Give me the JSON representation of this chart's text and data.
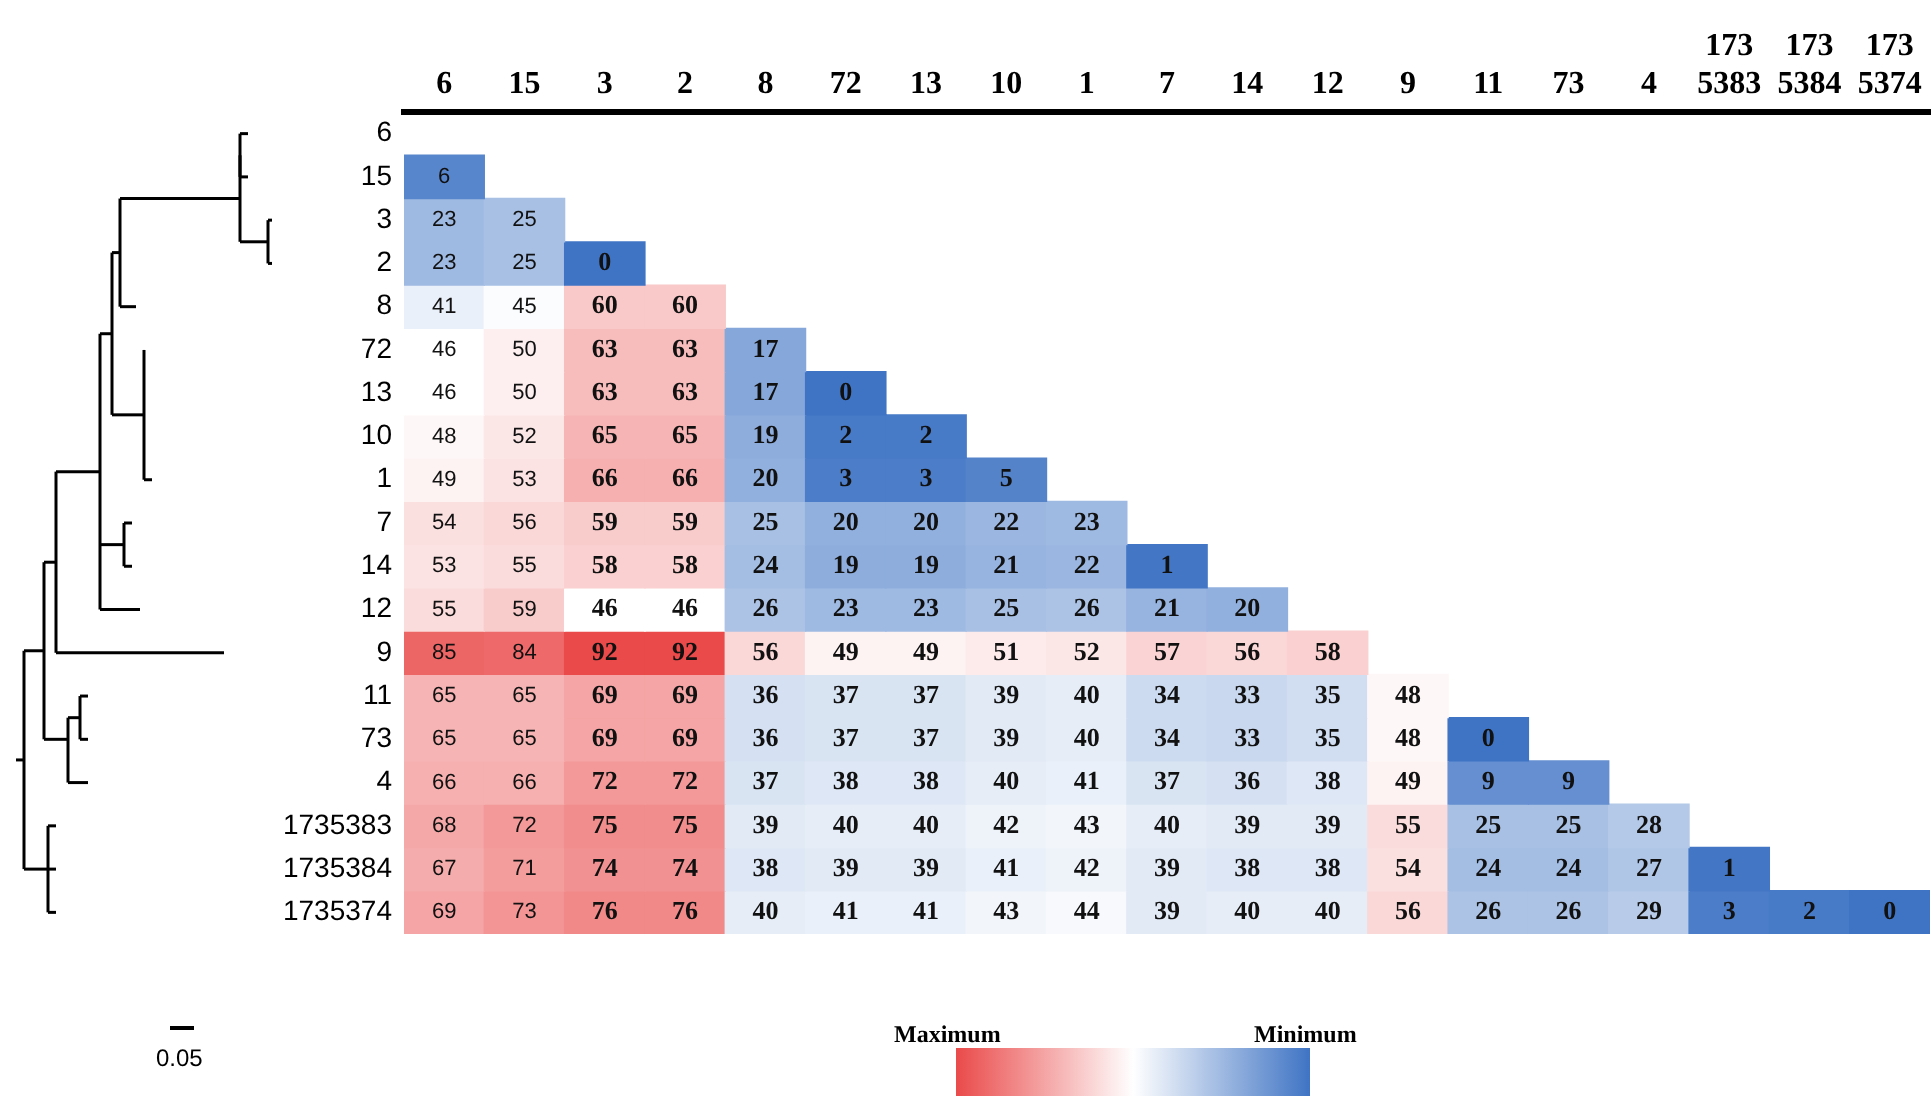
{
  "chart_data": {
    "type": "heatmap",
    "categories": [
      "6",
      "15",
      "3",
      "2",
      "8",
      "72",
      "13",
      "10",
      "1",
      "7",
      "14",
      "12",
      "9",
      "11",
      "73",
      "4",
      "173 5383",
      "173 5384",
      "173 5374"
    ],
    "y_categories": [
      "6",
      "15",
      "3",
      "2",
      "8",
      "72",
      "13",
      "10",
      "1",
      "7",
      "14",
      "12",
      "9",
      "11",
      "73",
      "4",
      "1735383",
      "1735384",
      "1735374"
    ],
    "cells": [
      [
        null,
        null,
        null,
        null,
        null,
        null,
        null,
        null,
        null,
        null,
        null,
        null,
        null,
        null,
        null,
        null,
        null,
        null,
        null
      ],
      [
        6,
        null,
        null,
        null,
        null,
        null,
        null,
        null,
        null,
        null,
        null,
        null,
        null,
        null,
        null,
        null,
        null,
        null,
        null
      ],
      [
        23,
        25,
        null,
        null,
        null,
        null,
        null,
        null,
        null,
        null,
        null,
        null,
        null,
        null,
        null,
        null,
        null,
        null,
        null
      ],
      [
        23,
        25,
        0,
        null,
        null,
        null,
        null,
        null,
        null,
        null,
        null,
        null,
        null,
        null,
        null,
        null,
        null,
        null,
        null
      ],
      [
        41,
        45,
        60,
        60,
        null,
        null,
        null,
        null,
        null,
        null,
        null,
        null,
        null,
        null,
        null,
        null,
        null,
        null,
        null
      ],
      [
        46,
        50,
        63,
        63,
        17,
        null,
        null,
        null,
        null,
        null,
        null,
        null,
        null,
        null,
        null,
        null,
        null,
        null,
        null
      ],
      [
        46,
        50,
        63,
        63,
        17,
        0,
        null,
        null,
        null,
        null,
        null,
        null,
        null,
        null,
        null,
        null,
        null,
        null,
        null
      ],
      [
        48,
        52,
        65,
        65,
        19,
        2,
        2,
        null,
        null,
        null,
        null,
        null,
        null,
        null,
        null,
        null,
        null,
        null,
        null
      ],
      [
        49,
        53,
        66,
        66,
        20,
        3,
        3,
        5,
        null,
        null,
        null,
        null,
        null,
        null,
        null,
        null,
        null,
        null,
        null
      ],
      [
        54,
        56,
        59,
        59,
        25,
        20,
        20,
        22,
        23,
        null,
        null,
        null,
        null,
        null,
        null,
        null,
        null,
        null,
        null
      ],
      [
        53,
        55,
        58,
        58,
        24,
        19,
        19,
        21,
        22,
        1,
        null,
        null,
        null,
        null,
        null,
        null,
        null,
        null,
        null
      ],
      [
        55,
        59,
        46,
        46,
        26,
        23,
        23,
        25,
        26,
        21,
        20,
        null,
        null,
        null,
        null,
        null,
        null,
        null,
        null
      ],
      [
        85,
        84,
        92,
        92,
        56,
        49,
        49,
        51,
        52,
        57,
        56,
        58,
        null,
        null,
        null,
        null,
        null,
        null,
        null
      ],
      [
        65,
        65,
        69,
        69,
        36,
        37,
        37,
        39,
        40,
        34,
        33,
        35,
        48,
        null,
        null,
        null,
        null,
        null,
        null
      ],
      [
        65,
        65,
        69,
        69,
        36,
        37,
        37,
        39,
        40,
        34,
        33,
        35,
        48,
        0,
        null,
        null,
        null,
        null,
        null
      ],
      [
        66,
        66,
        72,
        72,
        37,
        38,
        38,
        40,
        41,
        37,
        36,
        38,
        49,
        9,
        9,
        null,
        null,
        null,
        null
      ],
      [
        68,
        72,
        75,
        75,
        39,
        40,
        40,
        42,
        43,
        40,
        39,
        39,
        55,
        25,
        25,
        28,
        null,
        null,
        null
      ],
      [
        67,
        71,
        74,
        74,
        38,
        39,
        39,
        41,
        42,
        39,
        38,
        38,
        54,
        24,
        24,
        27,
        1,
        null,
        null
      ],
      [
        69,
        73,
        76,
        76,
        40,
        41,
        41,
        43,
        44,
        39,
        40,
        40,
        56,
        26,
        26,
        29,
        3,
        2,
        0
      ]
    ],
    "data_labels": true,
    "annotations": [
      "Maximum",
      "Minimum",
      "0.05"
    ]
  }
}
